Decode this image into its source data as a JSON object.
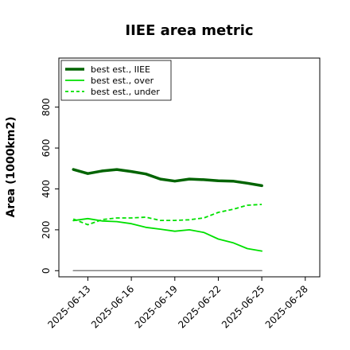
{
  "chart_data": {
    "type": "line",
    "title": "IIEE area metric",
    "xlabel": "",
    "ylabel": "Area (1000km2)",
    "x": [
      "2025-06-12",
      "2025-06-13",
      "2025-06-14",
      "2025-06-15",
      "2025-06-16",
      "2025-06-17",
      "2025-06-18",
      "2025-06-19",
      "2025-06-20",
      "2025-06-21",
      "2025-06-22",
      "2025-06-23",
      "2025-06-24",
      "2025-06-25"
    ],
    "x_ticks": [
      "2025-06-13",
      "2025-06-16",
      "2025-06-19",
      "2025-06-22",
      "2025-06-25",
      "2025-06-28"
    ],
    "xlim": [
      "2025-06-11",
      "2025-06-29"
    ],
    "y_ticks": [
      0,
      200,
      400,
      600,
      800
    ],
    "ylim": [
      -30,
      1040
    ],
    "grid": false,
    "legend_position": "top-left",
    "series": [
      {
        "name": "best est., IIEE",
        "color": "#006400",
        "style": "solid",
        "width": 3.5,
        "values": [
          495,
          475,
          488,
          495,
          485,
          473,
          448,
          438,
          448,
          445,
          440,
          438,
          428,
          416
        ]
      },
      {
        "name": "best est., over",
        "color": "#00e000",
        "style": "solid",
        "width": 1.8,
        "values": [
          245,
          255,
          243,
          240,
          230,
          212,
          203,
          193,
          200,
          187,
          155,
          137,
          108,
          96
        ]
      },
      {
        "name": "best est., under",
        "color": "#00e000",
        "style": "dashed",
        "width": 1.8,
        "values": [
          253,
          225,
          250,
          258,
          258,
          262,
          246,
          246,
          249,
          258,
          285,
          300,
          320,
          324
        ]
      },
      {
        "name": "",
        "color": "#808080",
        "style": "solid",
        "width": 1.5,
        "values": [
          0,
          0,
          0,
          0,
          0,
          0,
          0,
          0,
          0,
          0,
          0,
          0,
          0,
          0
        ]
      }
    ]
  }
}
